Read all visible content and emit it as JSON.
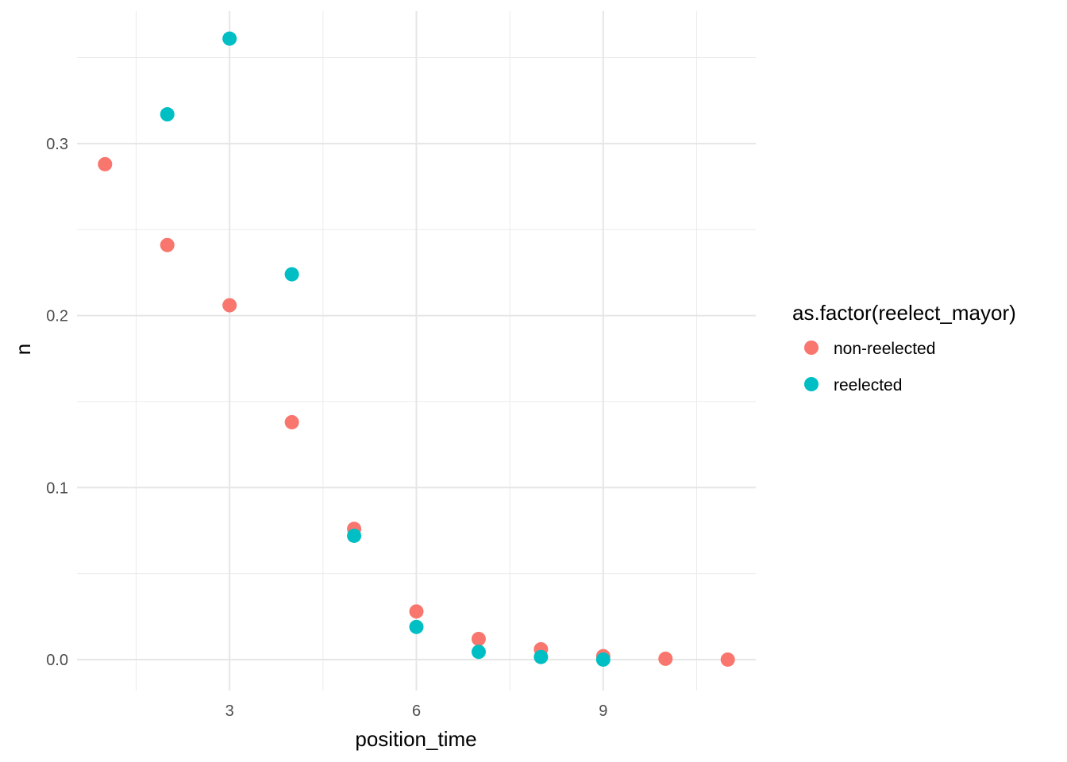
{
  "chart_data": {
    "type": "scatter",
    "title": "",
    "xlabel": "position_time",
    "ylabel": "n",
    "xlim": [
      0.55,
      11.45
    ],
    "ylim": [
      -0.018,
      0.377
    ],
    "x_ticks": [
      3,
      6,
      9
    ],
    "x_tick_labels": [
      "3",
      "6",
      "9"
    ],
    "x_minor": [
      1.5,
      4.5,
      7.5,
      10.5
    ],
    "y_ticks": [
      0.0,
      0.1,
      0.2,
      0.3
    ],
    "y_tick_labels": [
      "0.0",
      "0.1",
      "0.2",
      "0.3"
    ],
    "y_minor": [
      0.05,
      0.15,
      0.25,
      0.35
    ],
    "grid": true,
    "legend": {
      "title": "as.factor(reelect_mayor)",
      "position": "right"
    },
    "series": [
      {
        "name": "non-reelected",
        "color": "#F8766D",
        "points": [
          {
            "x": 1,
            "y": 0.288
          },
          {
            "x": 2,
            "y": 0.241
          },
          {
            "x": 3,
            "y": 0.206
          },
          {
            "x": 4,
            "y": 0.138
          },
          {
            "x": 5,
            "y": 0.076
          },
          {
            "x": 6,
            "y": 0.028
          },
          {
            "x": 7,
            "y": 0.012
          },
          {
            "x": 8,
            "y": 0.006
          },
          {
            "x": 9,
            "y": 0.002
          },
          {
            "x": 10,
            "y": 0.0005
          },
          {
            "x": 11,
            "y": 0.0
          }
        ]
      },
      {
        "name": "reelected",
        "color": "#00BFC4",
        "points": [
          {
            "x": 2,
            "y": 0.317
          },
          {
            "x": 3,
            "y": 0.361
          },
          {
            "x": 4,
            "y": 0.224
          },
          {
            "x": 5,
            "y": 0.072
          },
          {
            "x": 6,
            "y": 0.019
          },
          {
            "x": 7,
            "y": 0.0045
          },
          {
            "x": 8,
            "y": 0.0015
          },
          {
            "x": 9,
            "y": 0.0
          }
        ]
      }
    ]
  }
}
